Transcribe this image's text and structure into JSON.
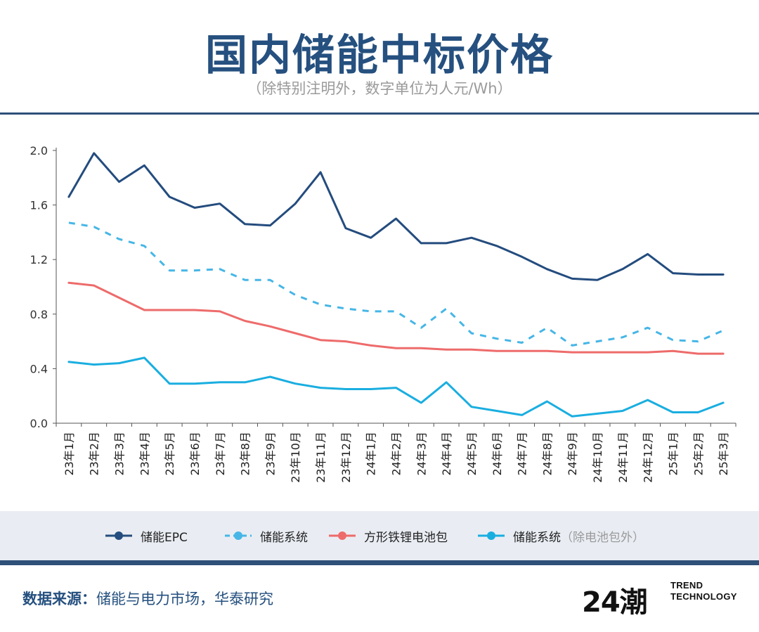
{
  "header": {
    "title": "国内储能中标价格",
    "subtitle": "（除特别注明外，数字单位为人元/Wh）"
  },
  "chart_data": {
    "type": "line",
    "categories": [
      "23年1月",
      "23年2月",
      "23年3月",
      "23年4月",
      "23年5月",
      "23年6月",
      "23年7月",
      "23年8月",
      "23年9月",
      "23年10月",
      "23年11月",
      "23年12月",
      "24年1月",
      "24年2月",
      "24年3月",
      "24年4月",
      "24年5月",
      "24年6月",
      "24年7月",
      "24年8月",
      "24年9月",
      "24年10月",
      "24年11月",
      "24年12月",
      "25年1月",
      "25年2月",
      "25年3月"
    ],
    "ylim": [
      0,
      2.0
    ],
    "yticks": [
      "0.0",
      "0.4",
      "0.8",
      "1.2",
      "1.6",
      "2.0"
    ],
    "series": [
      {
        "name": "储能EPC",
        "note": "",
        "color": "#244c7e",
        "dash": "solid",
        "values": [
          1.66,
          1.98,
          1.77,
          1.89,
          1.66,
          1.58,
          1.61,
          1.46,
          1.45,
          1.61,
          1.84,
          1.43,
          1.36,
          1.5,
          1.32,
          1.32,
          1.36,
          1.3,
          1.22,
          1.13,
          1.06,
          1.05,
          1.13,
          1.24,
          1.1,
          1.09,
          1.09
        ]
      },
      {
        "name": "储能系统",
        "note": "",
        "color": "#46b6e6",
        "dash": "dashed",
        "values": [
          1.47,
          1.44,
          1.35,
          1.3,
          1.12,
          1.12,
          1.13,
          1.05,
          1.05,
          0.94,
          0.87,
          0.84,
          0.82,
          0.82,
          0.7,
          0.84,
          0.66,
          0.62,
          0.59,
          0.7,
          0.57,
          0.6,
          0.63,
          0.7,
          0.61,
          0.6,
          0.68
        ]
      },
      {
        "name": "方形铁锂电池包",
        "note": "",
        "color": "#ee6b6b",
        "dash": "solid",
        "values": [
          1.03,
          1.01,
          0.92,
          0.83,
          0.83,
          0.83,
          0.82,
          0.75,
          0.71,
          0.66,
          0.61,
          0.6,
          0.57,
          0.55,
          0.55,
          0.54,
          0.54,
          0.53,
          0.53,
          0.53,
          0.52,
          0.52,
          0.52,
          0.52,
          0.53,
          0.51,
          0.51
        ]
      },
      {
        "name": "储能系统",
        "note": "（除电池包外）",
        "color": "#1aaee0",
        "dash": "solid",
        "values": [
          0.45,
          0.43,
          0.44,
          0.48,
          0.29,
          0.29,
          0.3,
          0.3,
          0.34,
          0.29,
          0.26,
          0.25,
          0.25,
          0.26,
          0.15,
          0.3,
          0.12,
          0.09,
          0.06,
          0.16,
          0.05,
          0.07,
          0.09,
          0.17,
          0.08,
          0.08,
          0.15
        ]
      }
    ]
  },
  "footer": {
    "source_label": "数据来源：",
    "source_text": "储能与电力市场，华泰研究",
    "logo_mark": "24潮",
    "logo_line1": "TREND",
    "logo_line2": "TECHNOLOGY"
  }
}
